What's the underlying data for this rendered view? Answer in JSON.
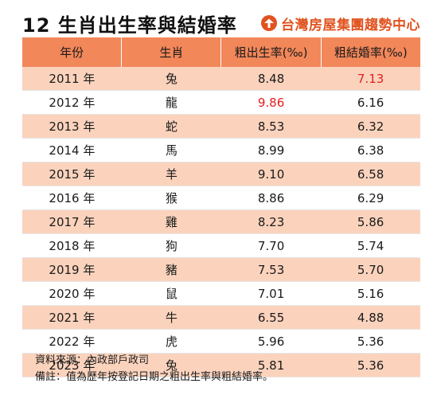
{
  "header": {
    "title": "12 生肖出生率與結婚率",
    "brand": "台灣房屋集團趨勢中心",
    "brand_color": "#e0531f"
  },
  "table": {
    "columns": [
      "年份",
      "生肖",
      "粗出生率(‰)",
      "粗結婚率(‰)"
    ],
    "header_bg": "#f2875a",
    "stripe_bg": "#fbd3bd",
    "highlight_color": "#e02020",
    "rows": [
      {
        "year": "2011 年",
        "zodiac": "兔",
        "birth": "8.48",
        "marry": "7.13",
        "birth_highlight": false,
        "marry_highlight": true
      },
      {
        "year": "2012 年",
        "zodiac": "龍",
        "birth": "9.86",
        "marry": "6.16",
        "birth_highlight": true,
        "marry_highlight": false
      },
      {
        "year": "2013 年",
        "zodiac": "蛇",
        "birth": "8.53",
        "marry": "6.32",
        "birth_highlight": false,
        "marry_highlight": false
      },
      {
        "year": "2014 年",
        "zodiac": "馬",
        "birth": "8.99",
        "marry": "6.38",
        "birth_highlight": false,
        "marry_highlight": false
      },
      {
        "year": "2015 年",
        "zodiac": "羊",
        "birth": "9.10",
        "marry": "6.58",
        "birth_highlight": false,
        "marry_highlight": false
      },
      {
        "year": "2016 年",
        "zodiac": "猴",
        "birth": "8.86",
        "marry": "6.29",
        "birth_highlight": false,
        "marry_highlight": false
      },
      {
        "year": "2017 年",
        "zodiac": "雞",
        "birth": "8.23",
        "marry": "5.86",
        "birth_highlight": false,
        "marry_highlight": false
      },
      {
        "year": "2018 年",
        "zodiac": "狗",
        "birth": "7.70",
        "marry": "5.74",
        "birth_highlight": false,
        "marry_highlight": false
      },
      {
        "year": "2019 年",
        "zodiac": "豬",
        "birth": "7.53",
        "marry": "5.70",
        "birth_highlight": false,
        "marry_highlight": false
      },
      {
        "year": "2020 年",
        "zodiac": "鼠",
        "birth": "7.01",
        "marry": "5.16",
        "birth_highlight": false,
        "marry_highlight": false
      },
      {
        "year": "2021 年",
        "zodiac": "牛",
        "birth": "6.55",
        "marry": "4.88",
        "birth_highlight": false,
        "marry_highlight": false
      },
      {
        "year": "2022 年",
        "zodiac": "虎",
        "birth": "5.96",
        "marry": "5.36",
        "birth_highlight": false,
        "marry_highlight": false
      },
      {
        "year": "2023 年",
        "zodiac": "兔",
        "birth": "5.81",
        "marry": "5.36",
        "birth_highlight": false,
        "marry_highlight": false
      }
    ]
  },
  "notes": {
    "source": "資料來源：內政部戶政司",
    "remark": "備註：值為歷年按登記日期之粗出生率與粗結婚率。"
  }
}
